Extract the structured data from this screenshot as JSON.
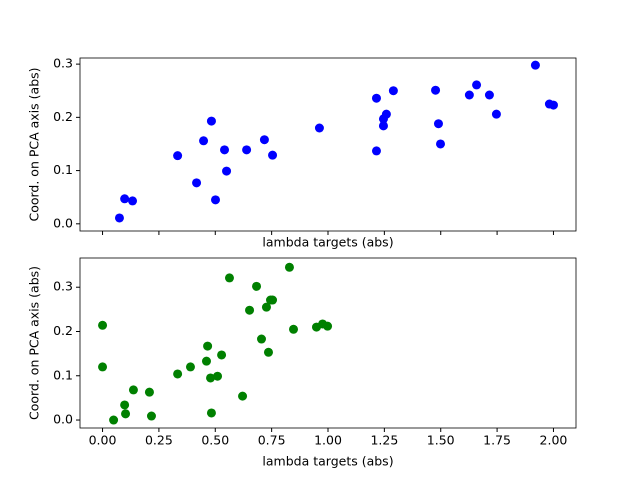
{
  "chart_data": [
    {
      "type": "scatter",
      "color": "#0000ff",
      "xlabel": "lambda targets (abs)",
      "ylabel": "Coord. on PCA axis (abs)",
      "x": [
        0.075,
        0.098,
        0.133,
        0.333,
        0.417,
        0.448,
        0.483,
        0.501,
        0.541,
        0.55,
        0.639,
        0.718,
        0.754,
        0.962,
        1.215,
        1.215,
        1.246,
        1.246,
        1.259,
        1.29,
        1.477,
        1.49,
        1.499,
        1.627,
        1.659,
        1.716,
        1.747,
        1.92,
        1.982,
        2.0
      ],
      "values": [
        0.011,
        0.047,
        0.043,
        0.128,
        0.077,
        0.156,
        0.193,
        0.045,
        0.139,
        0.099,
        0.139,
        0.158,
        0.129,
        0.18,
        0.236,
        0.137,
        0.184,
        0.197,
        0.206,
        0.25,
        0.251,
        0.188,
        0.15,
        0.242,
        0.261,
        0.242,
        0.206,
        0.298,
        0.225,
        0.223
      ],
      "xlim": [
        -0.1,
        2.1
      ],
      "ylim": [
        -0.0135,
        0.3115
      ],
      "xticks": [
        0,
        0.25,
        0.5,
        0.75,
        1,
        1.25,
        1.5,
        1.75,
        2
      ],
      "show_xtick_labels": false,
      "yticks": [
        {
          "value": 0,
          "label": "0.0"
        },
        0.1,
        0.2,
        0.3
      ]
    },
    {
      "type": "scatter",
      "color": "#008000",
      "xlabel": "lambda targets (abs)",
      "ylabel": "Coord. on PCA axis (abs)",
      "x": [
        0.0,
        0.0,
        0.049,
        0.098,
        0.102,
        0.137,
        0.208,
        0.217,
        0.333,
        0.39,
        0.466,
        0.461,
        0.479,
        0.483,
        0.51,
        0.528,
        0.563,
        0.621,
        0.652,
        0.683,
        0.705,
        0.727,
        0.736,
        0.745,
        0.754,
        0.829,
        0.847,
        0.949,
        0.976,
        0.998
      ],
      "values": [
        0.214,
        0.12,
        0.0,
        0.034,
        0.014,
        0.068,
        0.063,
        0.009,
        0.104,
        0.12,
        0.167,
        0.133,
        0.095,
        0.016,
        0.099,
        0.147,
        0.321,
        0.054,
        0.248,
        0.302,
        0.183,
        0.255,
        0.153,
        0.271,
        0.271,
        0.345,
        0.205,
        0.21,
        0.217,
        0.212
      ],
      "xlim": [
        -0.1,
        2.1
      ],
      "ylim": [
        -0.018,
        0.366
      ],
      "xticks": [
        {
          "value": 0,
          "label": "0.00"
        },
        {
          "value": 0.25,
          "label": "0.25"
        },
        {
          "value": 0.5,
          "label": "0.50"
        },
        {
          "value": 0.75,
          "label": "0.75"
        },
        {
          "value": 1,
          "label": "1.00"
        },
        {
          "value": 1.25,
          "label": "1.25"
        },
        {
          "value": 1.5,
          "label": "1.50"
        },
        {
          "value": 1.75,
          "label": "1.75"
        },
        {
          "value": 2,
          "label": "2.00"
        }
      ],
      "show_xtick_labels": true,
      "yticks": [
        {
          "value": 0,
          "label": "0.0"
        },
        0.1,
        0.2,
        0.3
      ]
    }
  ]
}
